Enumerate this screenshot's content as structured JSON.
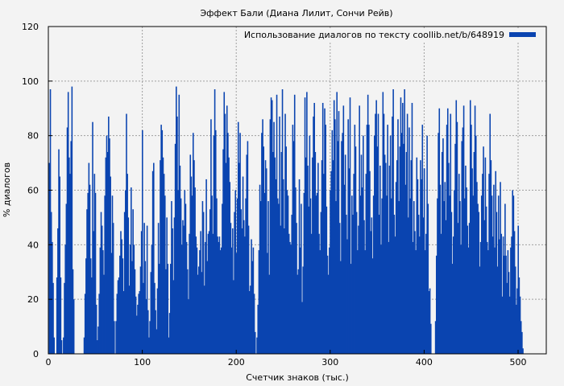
{
  "chart_data": {
    "type": "bar",
    "title": "Эффект Бали (Диана Лилит, Сончи Рейв)",
    "xlabel": "Счетчик знаков (тыс.)",
    "ylabel": "% диалогов",
    "xlim": [
      0,
      530
    ],
    "ylim": [
      0,
      120
    ],
    "xticks": [
      "0",
      "100",
      "200",
      "300",
      "400",
      "500"
    ],
    "yticks": [
      "0",
      "20",
      "40",
      "60",
      "80",
      "100",
      "120"
    ],
    "grid": true,
    "legend_position": "top-right",
    "bar_color": "#0a44b0",
    "series": [
      {
        "name": "Использование диалогов по тексту coollib.net/b/648919",
        "x_start": 1,
        "x_step": 1,
        "values": [
          70,
          97,
          52,
          41,
          26,
          6,
          0,
          0,
          28,
          46,
          75,
          65,
          28,
          5,
          0,
          6,
          26,
          40,
          55,
          83,
          96,
          72,
          66,
          78,
          98,
          31,
          20,
          0,
          0,
          0,
          0,
          0,
          0,
          0,
          0,
          0,
          0,
          6,
          22,
          35,
          53,
          59,
          70,
          62,
          35,
          28,
          85,
          45,
          66,
          59,
          18,
          5,
          10,
          22,
          39,
          52,
          47,
          38,
          29,
          58,
          72,
          80,
          74,
          87,
          79,
          65,
          37,
          58,
          48,
          12,
          0,
          12,
          22,
          27,
          28,
          36,
          45,
          42,
          35,
          23,
          52,
          60,
          88,
          66,
          50,
          25,
          40,
          61,
          34,
          53,
          40,
          31,
          21,
          14,
          18,
          22,
          23,
          32,
          45,
          82,
          26,
          48,
          34,
          20,
          47,
          16,
          6,
          12,
          30,
          40,
          67,
          70,
          26,
          16,
          9,
          24,
          48,
          33,
          71,
          84,
          82,
          72,
          66,
          58,
          31,
          50,
          33,
          6,
          15,
          33,
          56,
          46,
          27,
          50,
          77,
          98,
          87,
          60,
          95,
          69,
          57,
          40,
          49,
          47,
          60,
          55,
          41,
          31,
          20,
          44,
          73,
          65,
          58,
          81,
          71,
          61,
          43,
          39,
          29,
          32,
          38,
          45,
          30,
          56,
          52,
          25,
          41,
          64,
          34,
          44,
          45,
          53,
          86,
          58,
          44,
          80,
          97,
          82,
          57,
          43,
          41,
          43,
          38,
          39,
          55,
          75,
          96,
          88,
          70,
          91,
          81,
          72,
          63,
          48,
          39,
          46,
          27,
          52,
          60,
          37,
          57,
          85,
          70,
          81,
          53,
          46,
          65,
          49,
          43,
          57,
          73,
          78,
          47,
          23,
          25,
          42,
          34,
          39,
          22,
          8,
          0,
          6,
          18,
          38,
          62,
          56,
          81,
          86,
          76,
          59,
          71,
          68,
          37,
          56,
          29,
          86,
          94,
          93,
          74,
          85,
          72,
          64,
          95,
          57,
          55,
          87,
          47,
          74,
          97,
          64,
          46,
          88,
          76,
          60,
          58,
          44,
          41,
          40,
          51,
          84,
          78,
          95,
          61,
          48,
          29,
          31,
          64,
          39,
          55,
          19,
          32,
          59,
          94,
          72,
          96,
          69,
          54,
          80,
          57,
          44,
          72,
          87,
          92,
          74,
          58,
          59,
          70,
          44,
          38,
          52,
          71,
          92,
          66,
          90,
          84,
          54,
          36,
          29,
          39,
          60,
          67,
          82,
          71,
          93,
          86,
          56,
          96,
          78,
          89,
          48,
          34,
          78,
          81,
          91,
          62,
          73,
          51,
          42,
          86,
          68,
          94,
          33,
          58,
          51,
          66,
          84,
          76,
          52,
          38,
          47,
          91,
          58,
          73,
          61,
          80,
          49,
          38,
          66,
          84,
          95,
          84,
          67,
          45,
          50,
          35,
          58,
          80,
          88,
          93,
          76,
          88,
          51,
          69,
          40,
          57,
          96,
          88,
          73,
          70,
          58,
          84,
          41,
          69,
          80,
          57,
          87,
          97,
          51,
          43,
          63,
          71,
          86,
          56,
          76,
          94,
          81,
          92,
          77,
          97,
          62,
          74,
          88,
          50,
          83,
          57,
          71,
          92,
          41,
          56,
          45,
          38,
          72,
          64,
          51,
          43,
          71,
          64,
          84,
          50,
          68,
          38,
          44,
          80,
          55,
          23,
          24,
          11,
          0,
          0,
          0,
          0,
          12,
          36,
          57,
          81,
          90,
          62,
          44,
          74,
          79,
          56,
          63,
          49,
          84,
          90,
          70,
          58,
          88,
          52,
          33,
          43,
          60,
          77,
          93,
          85,
          48,
          66,
          56,
          40,
          78,
          83,
          91,
          57,
          69,
          61,
          47,
          39,
          48,
          93,
          84,
          68,
          58,
          74,
          91,
          80,
          63,
          55,
          52,
          32,
          41,
          58,
          66,
          76,
          49,
          72,
          54,
          41,
          38,
          66,
          88,
          71,
          58,
          43,
          62,
          39,
          67,
          52,
          32,
          58,
          42,
          63,
          44,
          21,
          43,
          36,
          55,
          36,
          26,
          38,
          30,
          21,
          39,
          43,
          60,
          58,
          45,
          32,
          18,
          24,
          47,
          28,
          21,
          12,
          8,
          2,
          0,
          0,
          0,
          0,
          0,
          0
        ]
      }
    ]
  }
}
